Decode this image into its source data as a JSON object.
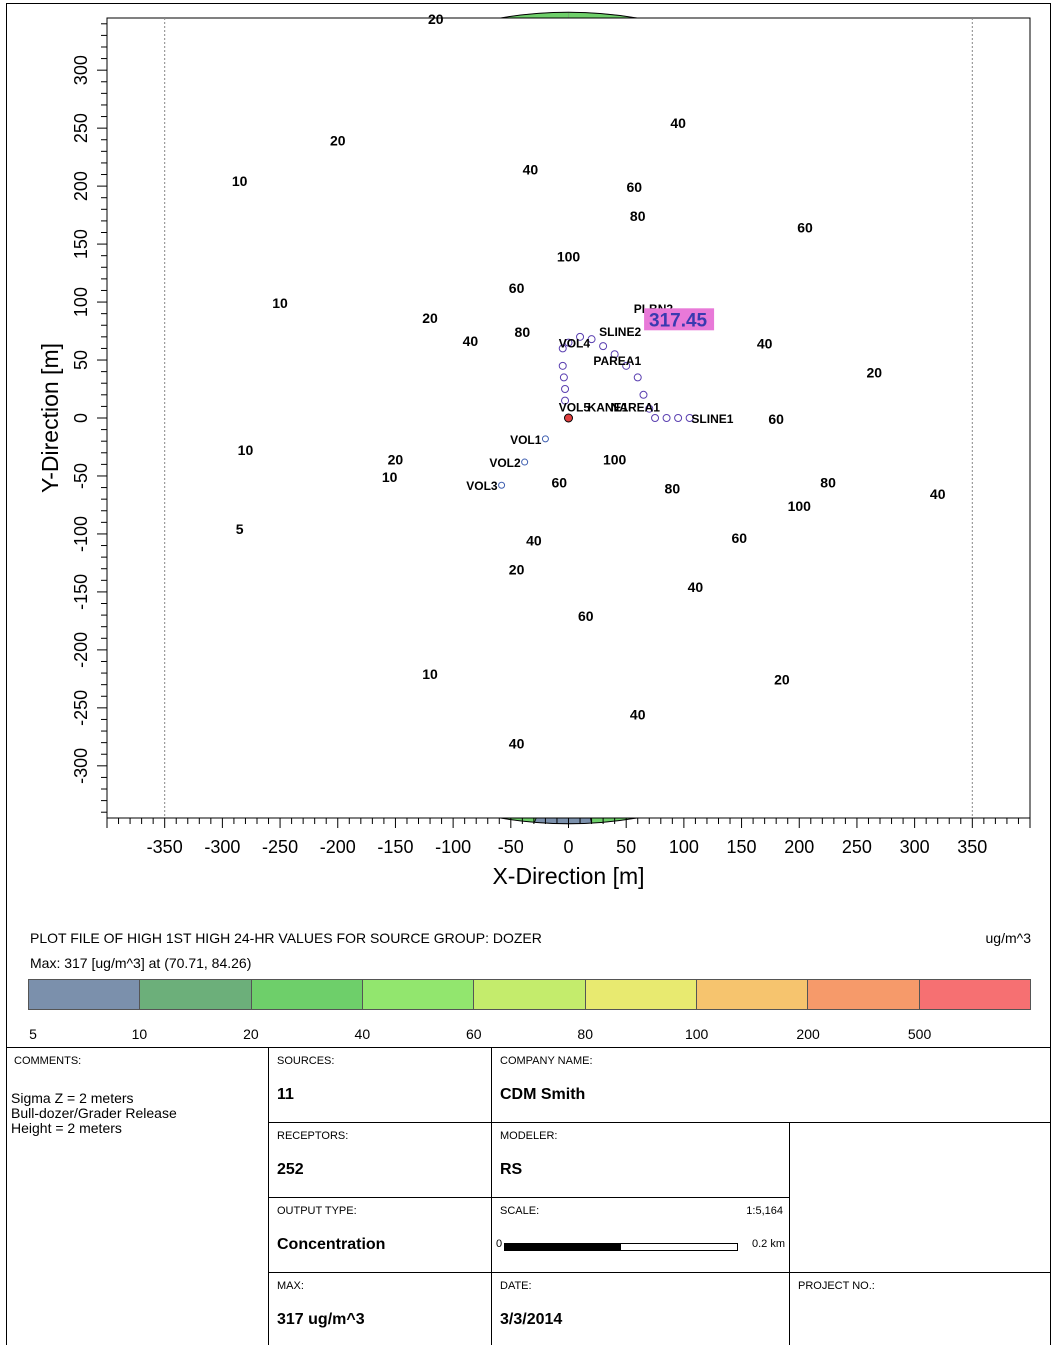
{
  "chart_data": {
    "type": "contour",
    "xlabel": "X-Direction [m]",
    "ylabel": "Y-Direction [m]",
    "xlim": [
      -400,
      400
    ],
    "ylim": [
      -345,
      345
    ],
    "x_ticks": [
      -350,
      -300,
      -250,
      -200,
      -150,
      -100,
      -50,
      0,
      50,
      100,
      150,
      200,
      250,
      300,
      350
    ],
    "y_ticks": [
      300,
      250,
      200,
      150,
      100,
      50,
      0,
      -50,
      -100,
      -150,
      -200,
      -250,
      -300
    ],
    "grid": "polar receptor grid",
    "domain_radius_m": 350,
    "contour_levels": [
      5,
      10,
      20,
      40,
      60,
      80,
      100,
      200,
      500
    ],
    "level_colors": [
      "#7b90ac",
      "#6caf7a",
      "#6ecf6a",
      "#92e66e",
      "#c4ec6c",
      "#e8ea70",
      "#f6c46e",
      "#f69a6a",
      "#f67072"
    ],
    "contour_labels": [
      {
        "text": "20",
        "x": -115,
        "y": 340
      },
      {
        "text": "20",
        "x": -200,
        "y": 235
      },
      {
        "text": "40",
        "x": -33,
        "y": 210
      },
      {
        "text": "40",
        "x": 95,
        "y": 250
      },
      {
        "text": "60",
        "x": 57,
        "y": 195
      },
      {
        "text": "80",
        "x": 60,
        "y": 170
      },
      {
        "text": "60",
        "x": 205,
        "y": 160
      },
      {
        "text": "10",
        "x": -285,
        "y": 200
      },
      {
        "text": "10",
        "x": -250,
        "y": 95
      },
      {
        "text": "20",
        "x": -120,
        "y": 82
      },
      {
        "text": "100",
        "x": 0,
        "y": 135
      },
      {
        "text": "60",
        "x": -45,
        "y": 108
      },
      {
        "text": "80",
        "x": -40,
        "y": 70
      },
      {
        "text": "40",
        "x": -85,
        "y": 62
      },
      {
        "text": "40",
        "x": 170,
        "y": 60
      },
      {
        "text": "20",
        "x": 265,
        "y": 35
      },
      {
        "text": "60",
        "x": 180,
        "y": -5
      },
      {
        "text": "10",
        "x": -280,
        "y": -32
      },
      {
        "text": "10",
        "x": -155,
        "y": -55
      },
      {
        "text": "20",
        "x": -150,
        "y": -40
      },
      {
        "text": "100",
        "x": 40,
        "y": -40
      },
      {
        "text": "60",
        "x": -8,
        "y": -60
      },
      {
        "text": "80",
        "x": 90,
        "y": -65
      },
      {
        "text": "80",
        "x": 225,
        "y": -60
      },
      {
        "text": "100",
        "x": 200,
        "y": -80
      },
      {
        "text": "40",
        "x": 320,
        "y": -70
      },
      {
        "text": "5",
        "x": -285,
        "y": -100
      },
      {
        "text": "40",
        "x": -30,
        "y": -110
      },
      {
        "text": "60",
        "x": 148,
        "y": -108
      },
      {
        "text": "20",
        "x": -45,
        "y": -135
      },
      {
        "text": "40",
        "x": 110,
        "y": -150
      },
      {
        "text": "60",
        "x": 15,
        "y": -175
      },
      {
        "text": "10",
        "x": -120,
        "y": -225
      },
      {
        "text": "20",
        "x": 185,
        "y": -230
      },
      {
        "text": "40",
        "x": 60,
        "y": -260
      },
      {
        "text": "40",
        "x": -45,
        "y": -285
      }
    ],
    "sources": [
      {
        "name": "VOL1",
        "x": -20,
        "y": -18
      },
      {
        "name": "VOL2",
        "x": -38,
        "y": -38
      },
      {
        "name": "VOL3",
        "x": -58,
        "y": -58
      },
      {
        "name": "VOL4",
        "x": -5,
        "y": 65
      },
      {
        "name": "VOL5",
        "x": -5,
        "y": 10
      },
      {
        "name": "SLINE1",
        "x": 110,
        "y": 0
      },
      {
        "name": "SLINE2",
        "x": 30,
        "y": 75
      },
      {
        "name": "PAREA1",
        "x": 25,
        "y": 50
      },
      {
        "name": "PLBN2",
        "x": 60,
        "y": 95
      },
      {
        "name": "NAREA1",
        "x": 40,
        "y": 10
      },
      {
        "name": "KANE1",
        "x": 20,
        "y": 10
      }
    ],
    "max_marker": {
      "label": "317.45",
      "x": 70.71,
      "y": 84.26
    },
    "fenceline_radius_m": 110
  },
  "caption": {
    "title": "PLOT FILE OF HIGH 1ST HIGH 24-HR VALUES FOR SOURCE GROUP: DOZER",
    "units": "ug/m^3",
    "max_line": "Max:  317  [ug/m^3]  at  (70.71, 84.26)"
  },
  "legend": {
    "labels": [
      "5",
      "10",
      "20",
      "40",
      "60",
      "80",
      "100",
      "200",
      "500"
    ]
  },
  "info": {
    "comments_label": "COMMENTS:",
    "comments_lines": [
      "Sigma Z = 2 meters",
      "Bull-dozer/Grader Release",
      "Height = 2 meters"
    ],
    "sources_label": "SOURCES:",
    "sources_value": "11",
    "company_label": "COMPANY NAME:",
    "company_value": "CDM Smith",
    "receptors_label": "RECEPTORS:",
    "receptors_value": "252",
    "modeler_label": "MODELER:",
    "modeler_value": "RS",
    "output_label": "OUTPUT TYPE:",
    "output_value": "Concentration",
    "scale_label": "SCALE:",
    "scale_value": "1:5,164",
    "scale_start": "0",
    "scale_end": "0.2 km",
    "max_label": "MAX:",
    "max_value": "317 ug/m^3",
    "date_label": "DATE:",
    "date_value": "3/3/2014",
    "project_label": "PROJECT NO.:"
  }
}
